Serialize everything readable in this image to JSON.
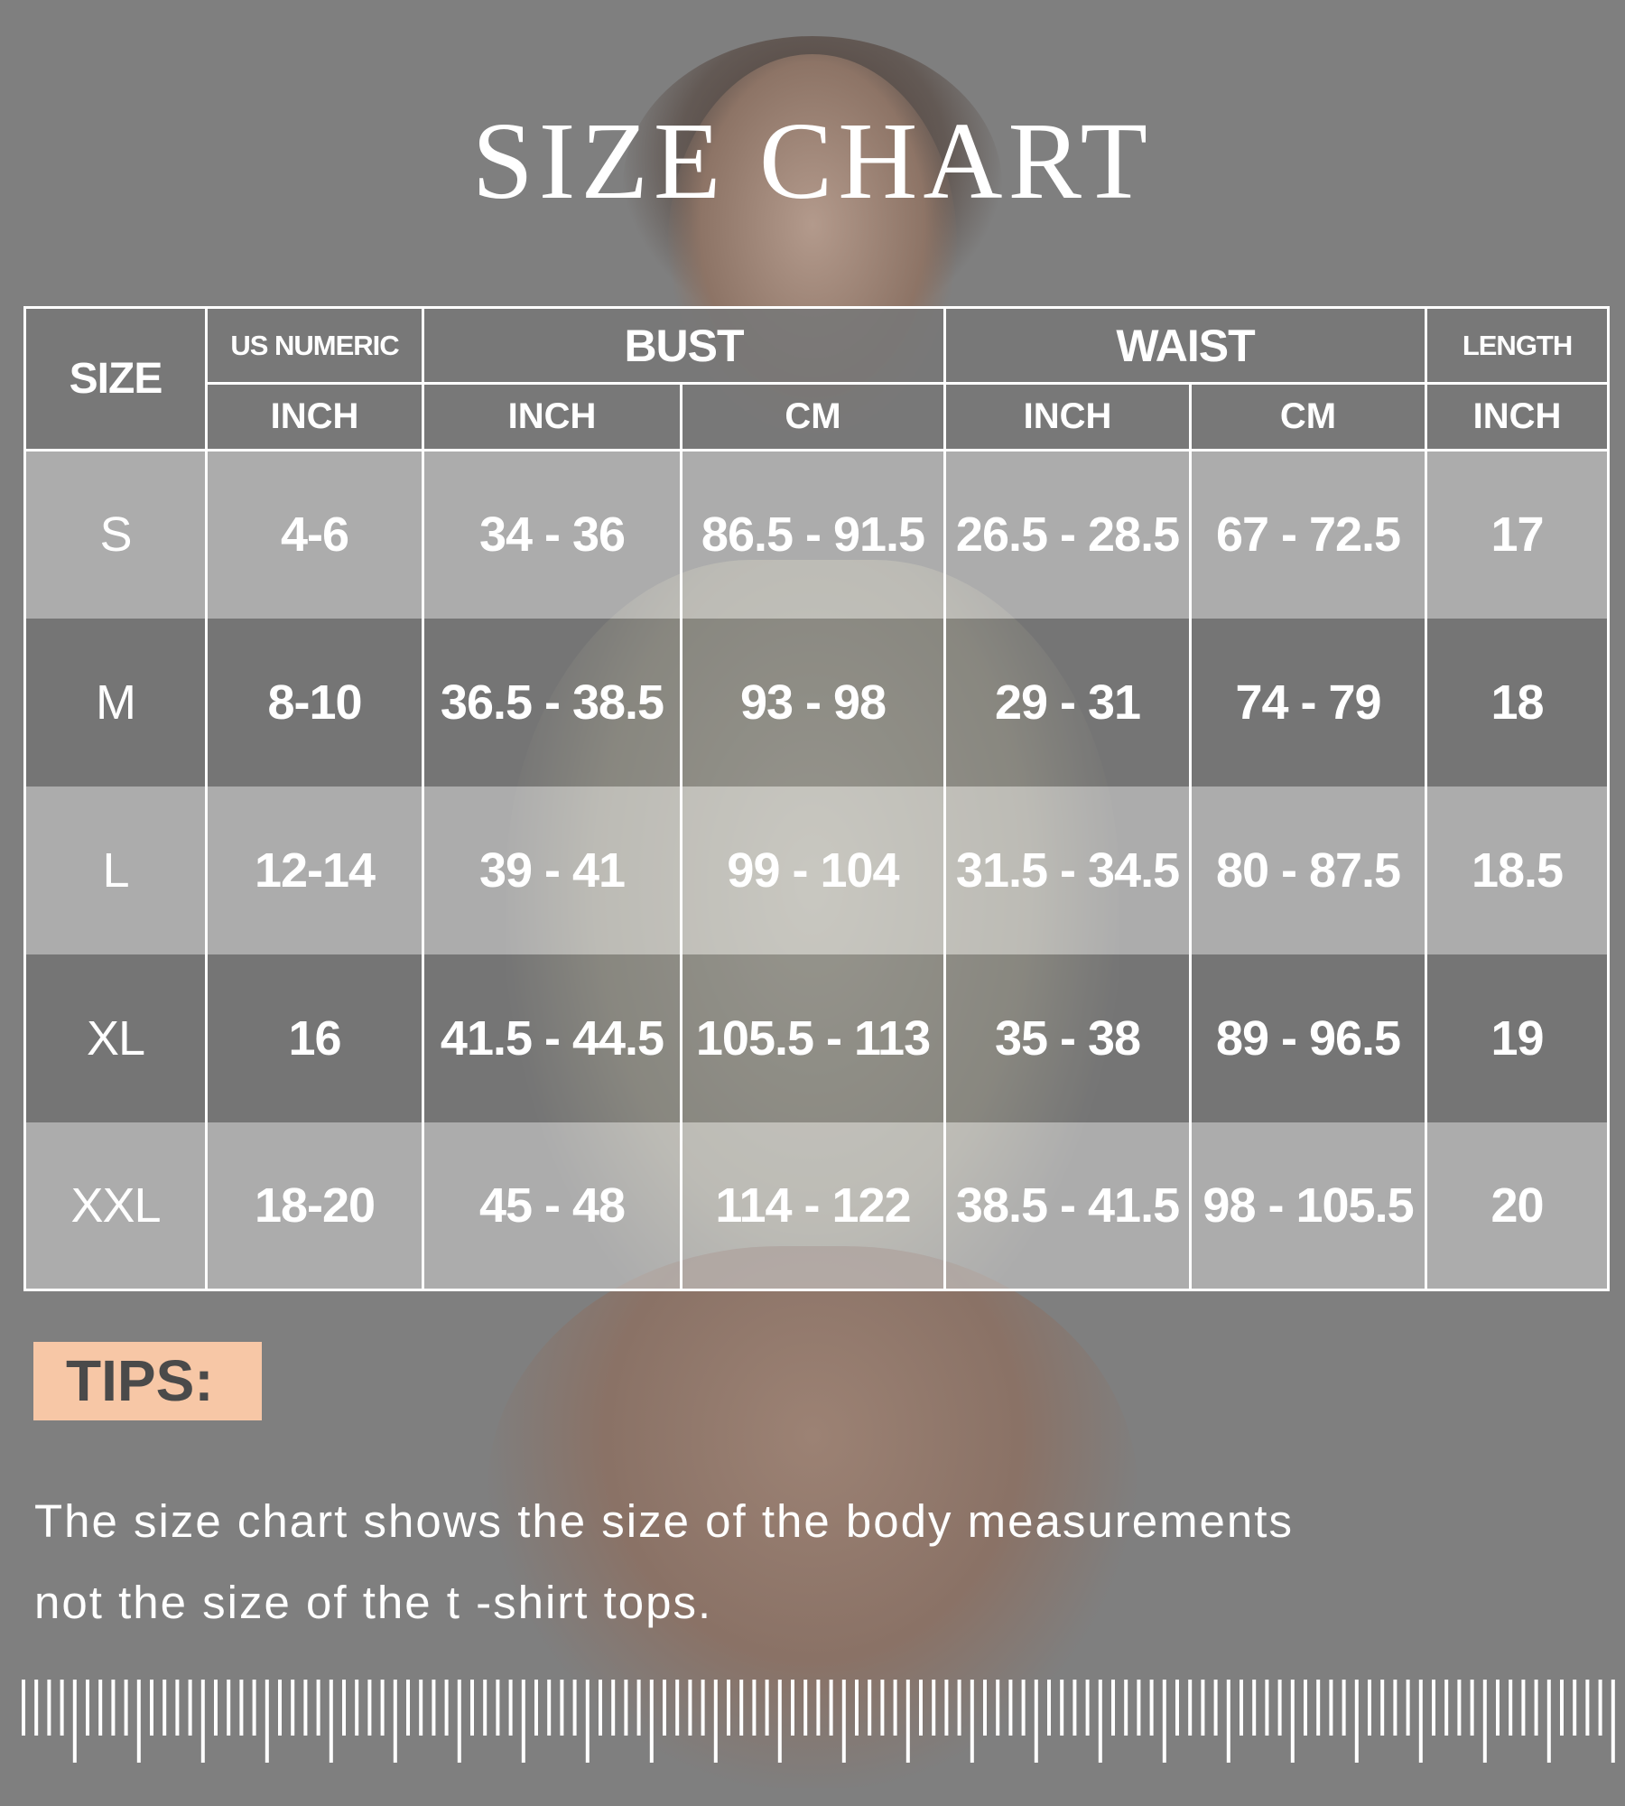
{
  "title": "SIZE CHART",
  "table": {
    "header_top": {
      "size": "SIZE",
      "us_numeric": "US NUMERIC",
      "bust": "BUST",
      "waist": "WAIST",
      "length": "LENGTH"
    },
    "header_units": [
      "INCH",
      "INCH",
      "CM",
      "INCH",
      "CM",
      "INCH"
    ],
    "rows": [
      [
        "S",
        "4-6",
        "34 - 36",
        "86.5 - 91.5",
        "26.5 - 28.5",
        "67 - 72.5",
        "17"
      ],
      [
        "M",
        "8-10",
        "36.5 - 38.5",
        "93 - 98",
        "29 - 31",
        "74 - 79",
        "18"
      ],
      [
        "L",
        "12-14",
        "39 - 41",
        "99 - 104",
        "31.5 - 34.5",
        "80 - 87.5",
        "18.5"
      ],
      [
        "XL",
        "16",
        "41.5 - 44.5",
        "105.5 - 113",
        "35 - 38",
        "89 - 96.5",
        "19"
      ],
      [
        "XXL",
        "18-20",
        "45 - 48",
        "114 - 122",
        "38.5 - 41.5",
        "98 - 105.5",
        "20"
      ]
    ]
  },
  "tips": {
    "label": "TIPS:",
    "line1": "The size chart shows the size of the body measurements",
    "line2": "not the size of the  t -shirt tops."
  },
  "colors": {
    "background": "#7f7f7f",
    "tips_label_bg": "#f7c7a6",
    "text": "#ffffff"
  },
  "decoration": {
    "ruler_icon": "measuring-tape-ruler"
  }
}
